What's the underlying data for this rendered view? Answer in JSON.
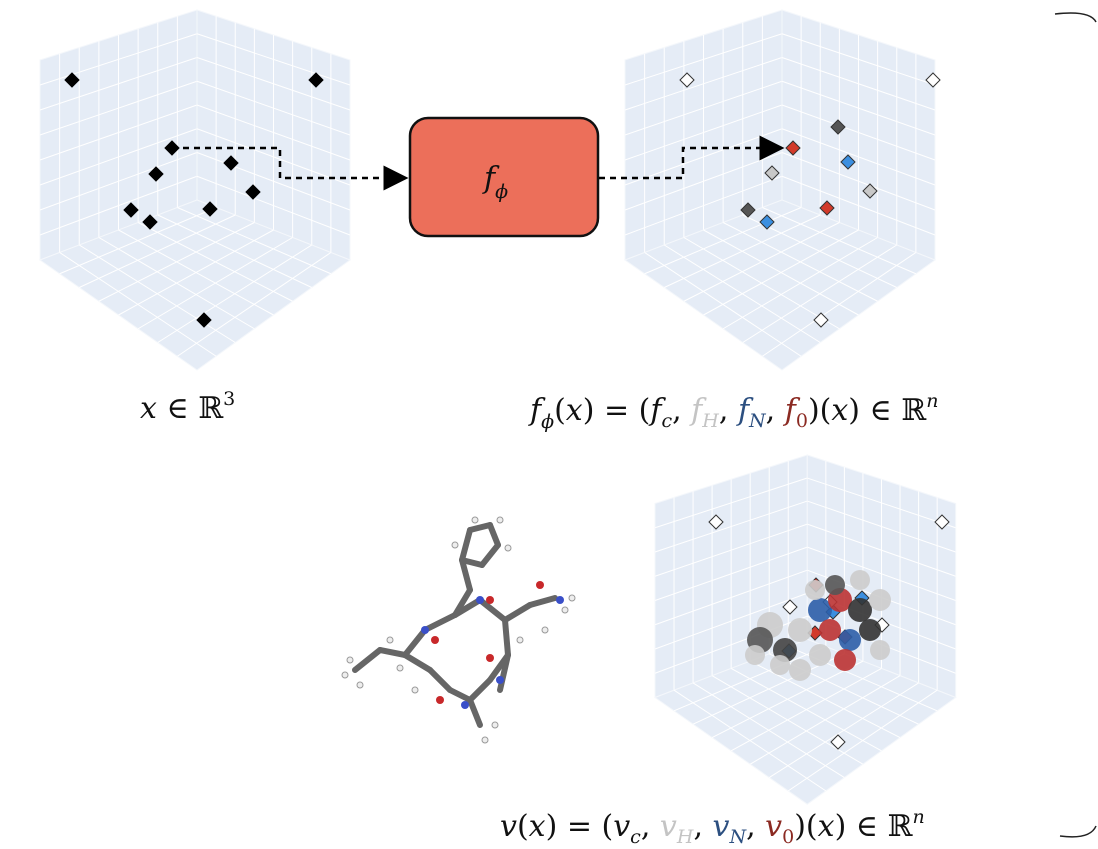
{
  "input_label": [
    "x",
    " ∈ ℝ",
    "3"
  ],
  "box_label": [
    "f",
    "ϕ"
  ],
  "f_formula": [
    "f",
    "ϕ",
    "(",
    "x",
    ") = (",
    "f",
    "c",
    ", ",
    "f",
    "H",
    ", ",
    "f",
    "N",
    ", ",
    "f",
    "0",
    ")(",
    "x",
    ") ∈ ℝ",
    "n"
  ],
  "v_formula": [
    "v",
    "(",
    "x",
    ") = (",
    "v",
    "c",
    ", ",
    "v",
    "H",
    ", ",
    "v",
    "N",
    ", ",
    "v",
    "0",
    ")(",
    "x",
    ") ∈ ℝ",
    "n"
  ]
}
